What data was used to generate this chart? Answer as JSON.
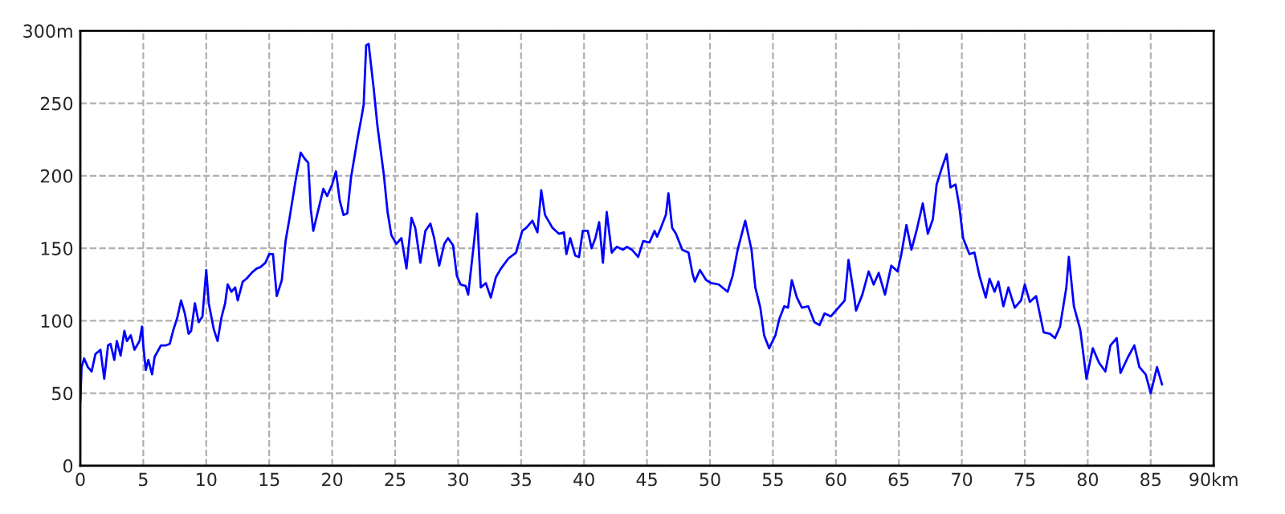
{
  "chart_data": {
    "type": "line",
    "x": [
      0,
      0.1,
      0.3,
      0.6,
      0.9,
      1.2,
      1.6,
      1.9,
      2.2,
      2.4,
      2.7,
      2.9,
      3.2,
      3.5,
      3.7,
      4.0,
      4.3,
      4.7,
      4.9,
      5.0,
      5.2,
      5.4,
      5.7,
      5.9,
      6.4,
      6.8,
      7.1,
      7.4,
      7.7,
      8.0,
      8.3,
      8.6,
      8.8,
      9.1,
      9.4,
      9.7,
      10.0,
      10.2,
      10.6,
      10.9,
      11.2,
      11.5,
      11.7,
      12.0,
      12.3,
      12.5,
      12.9,
      13.2,
      13.6,
      14.0,
      14.3,
      14.7,
      15.0,
      15.3,
      15.6,
      16.0,
      16.3,
      16.6,
      17.1,
      17.5,
      17.8,
      18.1,
      18.3,
      18.5,
      18.8,
      19.3,
      19.6,
      20.0,
      20.3,
      20.6,
      20.9,
      21.2,
      21.5,
      22.0,
      22.3,
      22.5,
      22.7,
      22.9,
      23.0,
      23.3,
      23.6,
      24.1,
      24.4,
      24.7,
      25.1,
      25.5,
      25.9,
      26.3,
      26.6,
      27.0,
      27.4,
      27.8,
      28.1,
      28.5,
      28.9,
      29.2,
      29.6,
      29.9,
      30.2,
      30.6,
      30.8,
      31.2,
      31.5,
      31.8,
      32.2,
      32.6,
      33.0,
      33.4,
      34.0,
      34.6,
      35.1,
      35.4,
      35.9,
      36.3,
      36.6,
      36.9,
      37.5,
      38.0,
      38.4,
      38.6,
      38.9,
      39.3,
      39.6,
      39.9,
      40.3,
      40.6,
      40.9,
      41.2,
      41.5,
      41.8,
      42.2,
      42.6,
      43.1,
      43.4,
      43.8,
      44.3,
      44.7,
      45.2,
      45.6,
      45.8,
      46.1,
      46.5,
      46.7,
      47.0,
      47.3,
      47.8,
      48.3,
      48.6,
      48.8,
      49.2,
      49.7,
      50.1,
      50.7,
      51.4,
      51.8,
      52.2,
      52.8,
      53.3,
      53.6,
      54.0,
      54.3,
      54.7,
      55.2,
      55.5,
      55.9,
      56.2,
      56.5,
      56.9,
      57.3,
      57.8,
      58.3,
      58.7,
      59.1,
      59.6,
      60.0,
      60.7,
      61.0,
      61.4,
      61.6,
      62.1,
      62.6,
      63.0,
      63.4,
      63.9,
      64.4,
      64.9,
      65.2,
      65.6,
      66.0,
      66.4,
      66.9,
      67.3,
      67.7,
      68.0,
      68.4,
      68.8,
      69.1,
      69.5,
      69.8,
      70.1,
      70.6,
      71.0,
      71.4,
      71.9,
      72.2,
      72.6,
      72.9,
      73.3,
      73.7,
      74.2,
      74.7,
      75.0,
      75.4,
      75.9,
      76.5,
      77.0,
      77.4,
      77.8,
      78.3,
      78.5,
      78.9,
      79.4,
      79.9,
      80.4,
      80.9,
      81.4,
      81.8,
      82.3,
      82.6,
      83.2,
      83.7,
      84.1,
      84.6,
      85.0,
      85.5,
      85.9
    ],
    "series": [
      {
        "color": "#0000ff",
        "values": [
          44,
          68,
          74,
          68,
          65,
          77,
          80,
          60,
          83,
          84,
          73,
          86,
          76,
          93,
          86,
          90,
          80,
          86,
          96,
          83,
          66,
          73,
          63,
          75,
          83,
          83,
          84,
          94,
          102,
          114,
          105,
          91,
          93,
          112,
          99,
          103,
          135,
          112,
          94,
          86,
          102,
          112,
          125,
          120,
          123,
          114,
          127,
          129,
          133,
          136,
          137,
          140,
          146,
          146,
          117,
          128,
          155,
          170,
          197,
          216,
          212,
          209,
          177,
          162,
          173,
          191,
          186,
          194,
          203,
          183,
          173,
          174,
          199,
          225,
          239,
          249,
          290,
          291,
          283,
          260,
          234,
          201,
          175,
          159,
          153,
          157,
          136,
          171,
          164,
          140,
          162,
          167,
          157,
          138,
          153,
          157,
          152,
          131,
          125,
          124,
          118,
          149,
          174,
          123,
          126,
          116,
          130,
          136,
          143,
          147,
          162,
          164,
          169,
          161,
          190,
          173,
          164,
          160,
          161,
          146,
          157,
          145,
          144,
          162,
          162,
          150,
          157,
          168,
          140,
          175,
          147,
          151,
          149,
          151,
          149,
          144,
          155,
          154,
          162,
          158,
          164,
          173,
          188,
          164,
          160,
          149,
          147,
          133,
          127,
          135,
          128,
          126,
          125,
          120,
          131,
          149,
          169,
          149,
          123,
          109,
          90,
          81,
          90,
          101,
          110,
          109,
          128,
          116,
          109,
          110,
          99,
          97,
          105,
          103,
          107,
          114,
          142,
          120,
          107,
          118,
          134,
          125,
          133,
          118,
          138,
          134,
          146,
          166,
          149,
          162,
          181,
          160,
          170,
          194,
          205,
          215,
          192,
          194,
          179,
          157,
          146,
          147,
          131,
          116,
          129,
          120,
          127,
          110,
          123,
          109,
          114,
          125,
          113,
          117,
          92,
          91,
          88,
          96,
          123,
          144,
          110,
          94,
          60,
          81,
          71,
          65,
          83,
          88,
          64,
          75,
          83,
          68,
          63,
          50,
          68,
          56
        ]
      }
    ],
    "xlim": [
      0,
      90
    ],
    "ylim": [
      0,
      300
    ],
    "xticks": [
      0,
      5,
      10,
      15,
      20,
      25,
      30,
      35,
      40,
      45,
      50,
      55,
      60,
      65,
      70,
      75,
      80,
      85,
      {
        "value": 90,
        "label": "90km"
      }
    ],
    "yticks": [
      0,
      50,
      100,
      150,
      200,
      250,
      {
        "value": 300,
        "label": "300m"
      }
    ],
    "grid": true,
    "line_style": "solid"
  }
}
